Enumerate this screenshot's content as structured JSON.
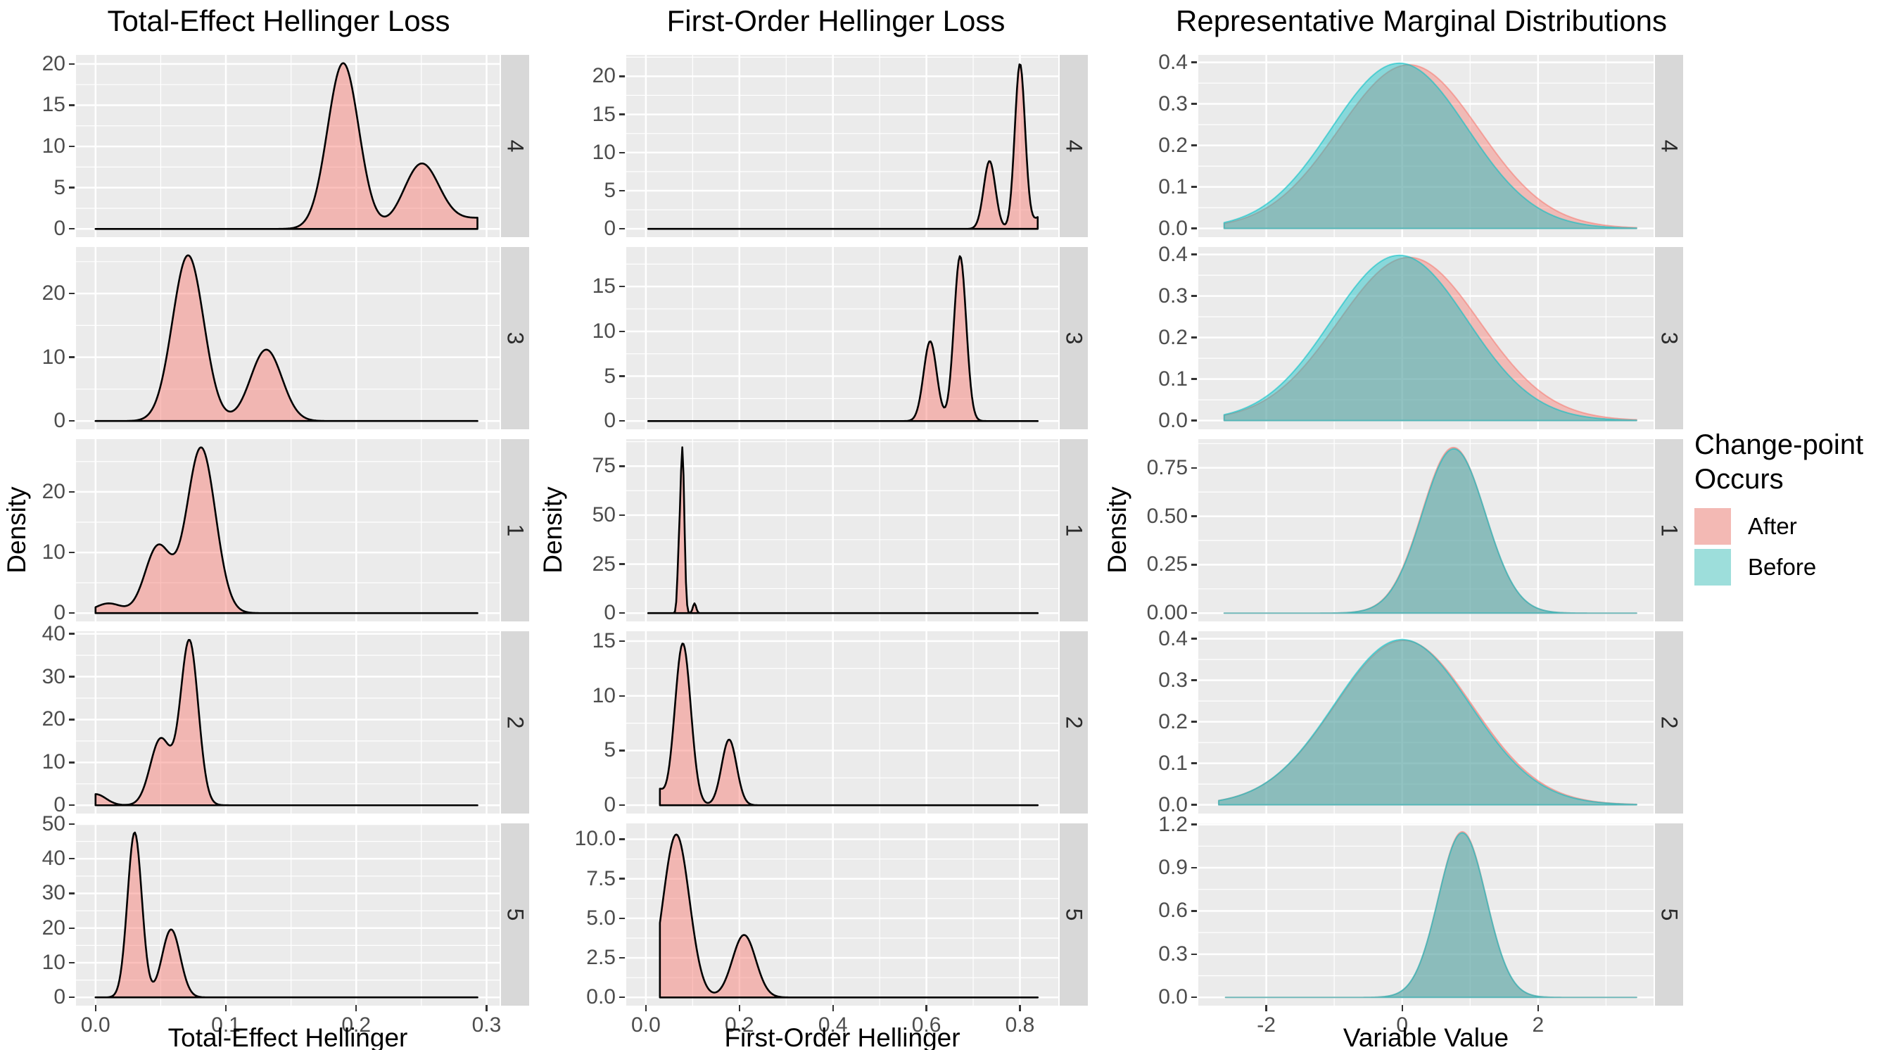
{
  "legend": {
    "title_lines": [
      "Change-point",
      "Occurs"
    ],
    "items": [
      {
        "label": "After",
        "color": "#F3B9B4"
      },
      {
        "label": "Before",
        "color": "#9DDEDB"
      }
    ]
  },
  "style": {
    "panel_bg": "#EBEBEB",
    "strip_bg": "#D8D8D8",
    "grid_color": "#FFFFFF",
    "tick_text": "#4D4D4D",
    "after_base": "#F8766D",
    "before_base": "#00BFC4",
    "loss_fill_alpha": 0.45,
    "marginal_fill_alpha": 0.42,
    "loss_stroke": "#000000",
    "loss_stroke_width": 2.6,
    "marginal_stroke_alpha": 0.55,
    "marginal_stroke_width": 2
  },
  "facet_labels": [
    "4",
    "3",
    "1",
    "2",
    "5"
  ],
  "chart_data": [
    {
      "type": "area",
      "kind": "loss",
      "title": "Total-Effect Hellinger Loss",
      "xlabel": "Total-Effect Hellinger",
      "ylabel": "Density",
      "xlim": [
        -0.015,
        0.31
      ],
      "x_ticks": [
        {
          "v": 0.0,
          "label": "0.0"
        },
        {
          "v": 0.1,
          "label": "0.1"
        },
        {
          "v": 0.2,
          "label": "0.2"
        },
        {
          "v": 0.3,
          "label": "0.3"
        }
      ],
      "facets": [
        {
          "label": "4",
          "ylim": [
            -1.0,
            21.1
          ],
          "yticks": [
            {
              "v": 0,
              "label": "0"
            },
            {
              "v": 5,
              "label": "5"
            },
            {
              "v": 10,
              "label": "10"
            },
            {
              "v": 15,
              "label": "15"
            },
            {
              "v": 20,
              "label": "20"
            }
          ],
          "series": [
            {
              "name": "After",
              "domain": [
                0.0,
                0.293
              ],
              "components": [
                {
                  "mu": 0.19,
                  "sigma": 0.012,
                  "amp": 20.1
                },
                {
                  "mu": 0.25,
                  "sigma": 0.0135,
                  "amp": 7.6
                },
                {
                  "mu": 0.3,
                  "sigma": 0.03,
                  "amp": 1.35
                }
              ]
            }
          ]
        },
        {
          "label": "3",
          "ylim": [
            -1.3,
            27.3
          ],
          "yticks": [
            {
              "v": 0,
              "label": "0"
            },
            {
              "v": 10,
              "label": "10"
            },
            {
              "v": 20,
              "label": "20"
            }
          ],
          "series": [
            {
              "name": "After",
              "domain": [
                0.0,
                0.293
              ],
              "components": [
                {
                  "mu": 0.071,
                  "sigma": 0.012,
                  "amp": 26.0
                },
                {
                  "mu": 0.131,
                  "sigma": 0.012,
                  "amp": 11.2
                }
              ]
            }
          ]
        },
        {
          "label": "1",
          "ylim": [
            -1.37,
            28.7
          ],
          "yticks": [
            {
              "v": 0,
              "label": "0"
            },
            {
              "v": 10,
              "label": "10"
            },
            {
              "v": 20,
              "label": "20"
            }
          ],
          "series": [
            {
              "name": "After",
              "domain": [
                0.0,
                0.293
              ],
              "components": [
                {
                  "mu": 0.01,
                  "sigma": 0.01,
                  "amp": 1.6
                },
                {
                  "mu": 0.048,
                  "sigma": 0.01,
                  "amp": 11.0
                },
                {
                  "mu": 0.081,
                  "sigma": 0.011,
                  "amp": 27.3
                }
              ]
            }
          ]
        },
        {
          "label": "2",
          "ylim": [
            -1.93,
            40.6
          ],
          "yticks": [
            {
              "v": 0,
              "label": "0"
            },
            {
              "v": 10,
              "label": "10"
            },
            {
              "v": 20,
              "label": "20"
            },
            {
              "v": 30,
              "label": "30"
            },
            {
              "v": 40,
              "label": "40"
            }
          ],
          "series": [
            {
              "name": "After",
              "domain": [
                0.0,
                0.293
              ],
              "components": [
                {
                  "mu": 0.0,
                  "sigma": 0.008,
                  "amp": 2.6
                },
                {
                  "mu": 0.05,
                  "sigma": 0.008,
                  "amp": 15.5
                },
                {
                  "mu": 0.072,
                  "sigma": 0.0068,
                  "amp": 38.3
                }
              ]
            }
          ]
        },
        {
          "label": "5",
          "ylim": [
            -2.39,
            50.2
          ],
          "yticks": [
            {
              "v": 0,
              "label": "0"
            },
            {
              "v": 10,
              "label": "10"
            },
            {
              "v": 20,
              "label": "20"
            },
            {
              "v": 30,
              "label": "30"
            },
            {
              "v": 40,
              "label": "40"
            },
            {
              "v": 50,
              "label": "50"
            }
          ],
          "series": [
            {
              "name": "After",
              "domain": [
                0.0,
                0.293
              ],
              "components": [
                {
                  "mu": 0.03,
                  "sigma": 0.0055,
                  "amp": 47.6
                },
                {
                  "mu": 0.058,
                  "sigma": 0.007,
                  "amp": 19.6
                }
              ]
            }
          ]
        }
      ]
    },
    {
      "type": "area",
      "kind": "loss",
      "title": "First-Order Hellinger Loss",
      "xlabel": "First-Order Hellinger",
      "ylabel": "Density",
      "xlim": [
        -0.042,
        0.882
      ],
      "x_ticks": [
        {
          "v": 0.0,
          "label": "0.0"
        },
        {
          "v": 0.2,
          "label": "0.2"
        },
        {
          "v": 0.4,
          "label": "0.4"
        },
        {
          "v": 0.6,
          "label": "0.6"
        },
        {
          "v": 0.8,
          "label": "0.8"
        }
      ],
      "facets": [
        {
          "label": "4",
          "ylim": [
            -1.09,
            22.8
          ],
          "yticks": [
            {
              "v": 0,
              "label": "0"
            },
            {
              "v": 5,
              "label": "5"
            },
            {
              "v": 10,
              "label": "10"
            },
            {
              "v": 15,
              "label": "15"
            },
            {
              "v": 20,
              "label": "20"
            }
          ],
          "series": [
            {
              "name": "After",
              "domain": [
                0.005,
                0.838
              ],
              "components": [
                {
                  "mu": 0.735,
                  "sigma": 0.0125,
                  "amp": 8.9
                },
                {
                  "mu": 0.8,
                  "sigma": 0.011,
                  "amp": 21.6
                },
                {
                  "mu": 0.852,
                  "sigma": 0.02,
                  "amp": 1.9
                }
              ]
            }
          ]
        },
        {
          "label": "3",
          "ylim": [
            -0.92,
            19.4
          ],
          "yticks": [
            {
              "v": 0,
              "label": "0"
            },
            {
              "v": 5,
              "label": "5"
            },
            {
              "v": 10,
              "label": "10"
            },
            {
              "v": 15,
              "label": "15"
            }
          ],
          "series": [
            {
              "name": "After",
              "domain": [
                0.005,
                0.838
              ],
              "components": [
                {
                  "mu": 0.608,
                  "sigma": 0.014,
                  "amp": 8.9
                },
                {
                  "mu": 0.672,
                  "sigma": 0.013,
                  "amp": 18.4
                }
              ]
            }
          ]
        },
        {
          "label": "1",
          "ylim": [
            -4.23,
            88.8
          ],
          "yticks": [
            {
              "v": 0,
              "label": "0"
            },
            {
              "v": 25,
              "label": "25"
            },
            {
              "v": 50,
              "label": "50"
            },
            {
              "v": 75,
              "label": "75"
            }
          ],
          "series": [
            {
              "name": "After",
              "domain": [
                0.005,
                0.838
              ],
              "components": [
                {
                  "mu": 0.07,
                  "sigma": 0.003,
                  "amp": 22
                },
                {
                  "mu": 0.078,
                  "sigma": 0.0042,
                  "amp": 84
                },
                {
                  "mu": 0.104,
                  "sigma": 0.0035,
                  "amp": 5
                }
              ]
            }
          ]
        },
        {
          "label": "2",
          "ylim": [
            -0.76,
            15.9
          ],
          "yticks": [
            {
              "v": 0,
              "label": "0"
            },
            {
              "v": 5,
              "label": "5"
            },
            {
              "v": 10,
              "label": "10"
            },
            {
              "v": 15,
              "label": "15"
            }
          ],
          "series": [
            {
              "name": "After",
              "domain": [
                0.03,
                0.838
              ],
              "components": [
                {
                  "mu": 0.025,
                  "sigma": 0.012,
                  "amp": 1.4
                },
                {
                  "mu": 0.079,
                  "sigma": 0.017,
                  "amp": 14.8
                },
                {
                  "mu": 0.178,
                  "sigma": 0.016,
                  "amp": 6.0
                }
              ]
            }
          ]
        },
        {
          "label": "5",
          "ylim": [
            -0.52,
            11.0
          ],
          "yticks": [
            {
              "v": 0,
              "label": "0.0"
            },
            {
              "v": 2.5,
              "label": "2.5"
            },
            {
              "v": 5,
              "label": "5.0"
            },
            {
              "v": 7.5,
              "label": "7.5"
            },
            {
              "v": 10,
              "label": "10.0"
            }
          ],
          "series": [
            {
              "name": "After",
              "domain": [
                0.03,
                0.838
              ],
              "components": [
                {
                  "mu": 0.065,
                  "sigma": 0.028,
                  "amp": 10.3
                },
                {
                  "mu": 0.21,
                  "sigma": 0.025,
                  "amp": 3.95
                }
              ]
            }
          ]
        }
      ]
    },
    {
      "type": "area",
      "kind": "marginal",
      "title": "Representative Marginal Distributions",
      "xlabel": "Variable Value",
      "ylabel": "Density",
      "xlim": [
        -3.0,
        3.7
      ],
      "x_ticks": [
        {
          "v": -2,
          "label": "-2"
        },
        {
          "v": 0,
          "label": "0"
        },
        {
          "v": 2,
          "label": "2"
        }
      ],
      "facets": [
        {
          "label": "4",
          "ylim": [
            -0.0209,
            0.418
          ],
          "yticks": [
            {
              "v": 0,
              "label": "0.0"
            },
            {
              "v": 0.1,
              "label": "0.1"
            },
            {
              "v": 0.2,
              "label": "0.2"
            },
            {
              "v": 0.3,
              "label": "0.3"
            },
            {
              "v": 0.4,
              "label": "0.4"
            }
          ],
          "series": [
            {
              "name": "After",
              "domain": [
                -2.62,
                3.45
              ],
              "components": [
                {
                  "mu": 0.1,
                  "sigma": 1.03,
                  "amp": 0.394
                }
              ]
            },
            {
              "name": "Before",
              "domain": [
                -2.62,
                3.45
              ],
              "components": [
                {
                  "mu": -0.04,
                  "sigma": 1.0,
                  "amp": 0.398
                }
              ]
            }
          ]
        },
        {
          "label": "3",
          "ylim": [
            -0.0209,
            0.418
          ],
          "yticks": [
            {
              "v": 0,
              "label": "0.0"
            },
            {
              "v": 0.1,
              "label": "0.1"
            },
            {
              "v": 0.2,
              "label": "0.2"
            },
            {
              "v": 0.3,
              "label": "0.3"
            },
            {
              "v": 0.4,
              "label": "0.4"
            }
          ],
          "series": [
            {
              "name": "After",
              "domain": [
                -2.62,
                3.45
              ],
              "components": [
                {
                  "mu": 0.1,
                  "sigma": 1.04,
                  "amp": 0.393
                }
              ]
            },
            {
              "name": "Before",
              "domain": [
                -2.62,
                3.45
              ],
              "components": [
                {
                  "mu": -0.04,
                  "sigma": 1.0,
                  "amp": 0.398
                }
              ]
            }
          ]
        },
        {
          "label": "1",
          "ylim": [
            -0.0428,
            0.898
          ],
          "yticks": [
            {
              "v": 0,
              "label": "0.00"
            },
            {
              "v": 0.25,
              "label": "0.25"
            },
            {
              "v": 0.5,
              "label": "0.50"
            },
            {
              "v": 0.75,
              "label": "0.75"
            }
          ],
          "series": [
            {
              "name": "After",
              "domain": [
                -2.62,
                3.45
              ],
              "components": [
                {
                  "mu": 0.755,
                  "sigma": 0.465,
                  "amp": 0.855
                }
              ]
            },
            {
              "name": "Before",
              "domain": [
                -2.62,
                3.45
              ],
              "components": [
                {
                  "mu": 0.76,
                  "sigma": 0.465,
                  "amp": 0.848
                }
              ]
            }
          ]
        },
        {
          "label": "2",
          "ylim": [
            -0.0209,
            0.418
          ],
          "yticks": [
            {
              "v": 0,
              "label": "0.0"
            },
            {
              "v": 0.1,
              "label": "0.1"
            },
            {
              "v": 0.2,
              "label": "0.2"
            },
            {
              "v": 0.3,
              "label": "0.3"
            },
            {
              "v": 0.4,
              "label": "0.4"
            }
          ],
          "series": [
            {
              "name": "After",
              "domain": [
                -2.7,
                3.45
              ],
              "components": [
                {
                  "mu": 0.02,
                  "sigma": 1.01,
                  "amp": 0.396
                }
              ]
            },
            {
              "name": "Before",
              "domain": [
                -2.7,
                3.45
              ],
              "components": [
                {
                  "mu": 0.0,
                  "sigma": 1.0,
                  "amp": 0.398
                }
              ]
            }
          ]
        },
        {
          "label": "5",
          "ylim": [
            -0.0575,
            1.208
          ],
          "yticks": [
            {
              "v": 0,
              "label": "0.0"
            },
            {
              "v": 0.3,
              "label": "0.3"
            },
            {
              "v": 0.6,
              "label": "0.6"
            },
            {
              "v": 0.9,
              "label": "0.9"
            },
            {
              "v": 1.2,
              "label": "1.2"
            }
          ],
          "series": [
            {
              "name": "After",
              "domain": [
                -2.6,
                3.45
              ],
              "components": [
                {
                  "mu": 0.885,
                  "sigma": 0.35,
                  "amp": 1.15
                }
              ]
            },
            {
              "name": "Before",
              "domain": [
                -2.6,
                3.45
              ],
              "components": [
                {
                  "mu": 0.885,
                  "sigma": 0.352,
                  "amp": 1.142
                }
              ]
            }
          ]
        }
      ]
    }
  ]
}
